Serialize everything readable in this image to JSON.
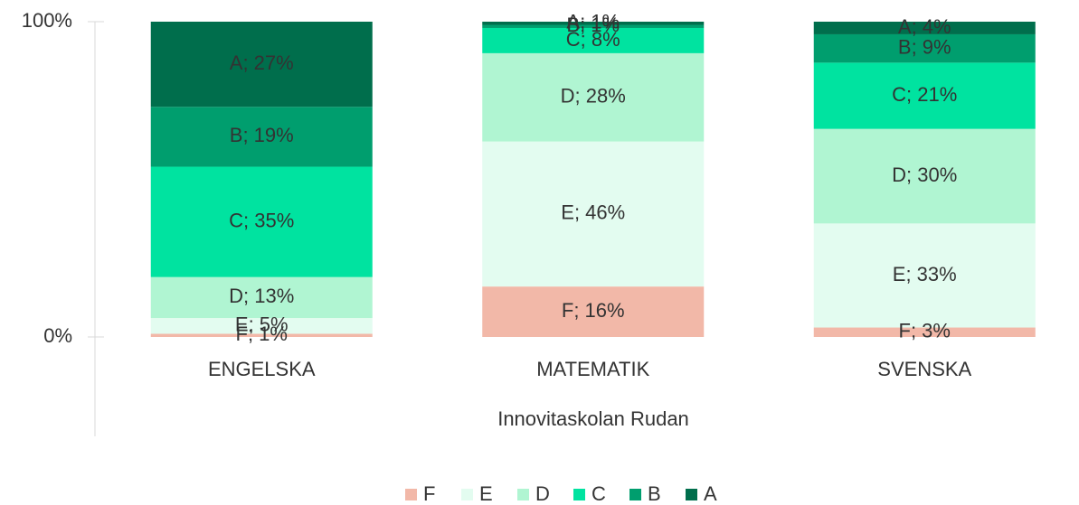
{
  "chart_data": {
    "type": "stacked_bar",
    "x_label": "Innovitaskolan Rudan",
    "categories": [
      "ENGELSKA",
      "MATEMATIK",
      "SVENSKA"
    ],
    "series": [
      {
        "name": "F",
        "color": "#f2b8a8",
        "values": [
          1,
          16,
          3
        ],
        "value_labels": [
          "F; 1%",
          "F; 16%",
          "F; 3%"
        ]
      },
      {
        "name": "E",
        "color": "#e3fcf0",
        "values": [
          5,
          46,
          33
        ],
        "value_labels": [
          "E; 5%",
          "E; 46%",
          "E; 33%"
        ]
      },
      {
        "name": "D",
        "color": "#b0f5d2",
        "values": [
          13,
          28,
          30
        ],
        "value_labels": [
          "D; 13%",
          "D; 28%",
          "D; 30%"
        ]
      },
      {
        "name": "C",
        "color": "#00e3a0",
        "values": [
          35,
          8,
          21
        ],
        "value_labels": [
          "C; 35%",
          "C; 8%",
          "C; 21%"
        ]
      },
      {
        "name": "B",
        "color": "#009e6e",
        "values": [
          19,
          1,
          9
        ],
        "value_labels": [
          "B; 19%",
          "B; 1%",
          "B; 9%"
        ]
      },
      {
        "name": "A",
        "color": "#006e4c",
        "values": [
          27,
          1,
          4
        ],
        "value_labels": [
          "A; 27%",
          "A; 1%",
          "A; 4%"
        ]
      }
    ],
    "ylim": [
      0,
      100
    ],
    "yticks": [
      {
        "value": 0,
        "label": "0%"
      },
      {
        "value": 100,
        "label": "100%"
      }
    ]
  }
}
